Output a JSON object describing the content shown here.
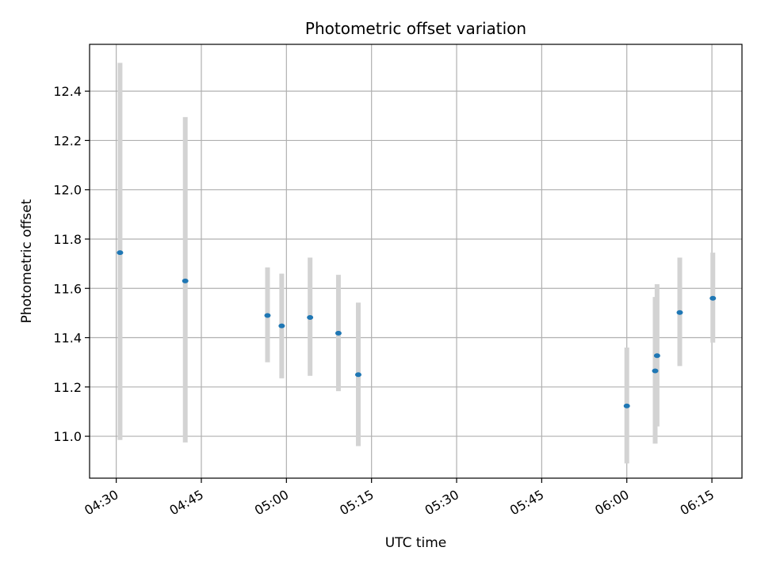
{
  "chart_data": {
    "type": "scatter",
    "title": "Photometric offset variation",
    "xlabel": "UTC time",
    "ylabel": "Photometric offset",
    "x_tick_labels": [
      "04:30",
      "04:45",
      "05:00",
      "05:15",
      "05:30",
      "05:45",
      "06:00",
      "06:15"
    ],
    "x_tick_minutes": [
      270,
      285,
      300,
      315,
      330,
      345,
      360,
      375
    ],
    "xlim_minutes": [
      265.3,
      380.3
    ],
    "y_ticks": [
      11.0,
      11.2,
      11.4,
      11.6,
      11.8,
      12.0,
      12.2,
      12.4
    ],
    "y_tick_labels": [
      "11.0",
      "11.2",
      "11.4",
      "11.6",
      "11.8",
      "12.0",
      "12.2",
      "12.4"
    ],
    "ylim": [
      10.83,
      12.59
    ],
    "grid": true,
    "colors": {
      "points": "#1f77b4",
      "errorbars": "#d3d3d3",
      "grid": "#b0b0b0"
    },
    "points": [
      {
        "time": "04:30:40",
        "value": 11.745,
        "low": 10.985,
        "high": 12.515
      },
      {
        "time": "04:42:10",
        "value": 11.63,
        "low": 10.975,
        "high": 12.295
      },
      {
        "time": "04:56:40",
        "value": 11.49,
        "low": 11.3,
        "high": 11.685
      },
      {
        "time": "04:59:10",
        "value": 11.448,
        "low": 11.235,
        "high": 11.66
      },
      {
        "time": "05:04:10",
        "value": 11.482,
        "low": 11.245,
        "high": 11.725
      },
      {
        "time": "05:09:10",
        "value": 11.418,
        "low": 11.183,
        "high": 11.655
      },
      {
        "time": "05:12:40",
        "value": 11.25,
        "low": 10.96,
        "high": 11.542
      },
      {
        "time": "06:00:00",
        "value": 11.123,
        "low": 10.89,
        "high": 11.36
      },
      {
        "time": "06:05:00",
        "value": 11.265,
        "low": 10.97,
        "high": 11.565
      },
      {
        "time": "06:05:20",
        "value": 11.327,
        "low": 11.04,
        "high": 11.617
      },
      {
        "time": "06:09:20",
        "value": 11.502,
        "low": 11.285,
        "high": 11.725
      },
      {
        "time": "06:15:10",
        "value": 11.56,
        "low": 11.38,
        "high": 11.745
      }
    ]
  }
}
